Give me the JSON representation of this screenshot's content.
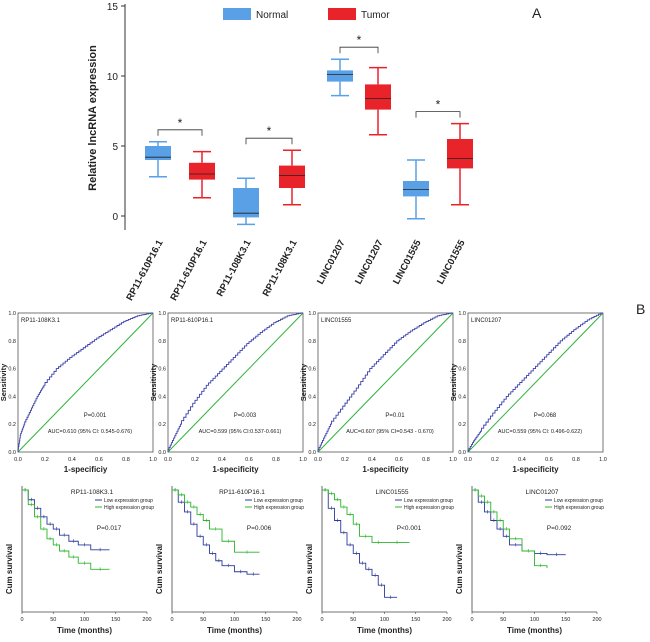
{
  "panel_a": {
    "letter": "A",
    "legend": [
      {
        "label": "Normal",
        "color": "#5aa0e6"
      },
      {
        "label": "Tumor",
        "color": "#e8232a"
      }
    ],
    "ylabel": "Relative lncRNA expression",
    "yticks": [
      "0",
      "5",
      "10",
      "15"
    ],
    "significance_mark": "*"
  },
  "panel_b": {
    "letter": "B",
    "roc_xlabel": "1-specificity",
    "roc_ylabel": "Sensitivity",
    "roc_ticks": [
      "0.0",
      "0.2",
      "0.4",
      "0.6",
      "0.8",
      "1.0"
    ],
    "km_xlabel": "Time (months)",
    "km_ylabel": "Cum survival",
    "km_xticks": [
      "0",
      "50",
      "100",
      "150",
      "200"
    ],
    "km_legend": [
      "Low expression group",
      "High expression group"
    ],
    "km_colors": {
      "low": "#2d3a9c",
      "high": "#2bb52b"
    },
    "roc_curve_color": "#3a3fa8",
    "roc_ref_color": "#2db33a"
  },
  "chart_data": [
    {
      "type": "box",
      "title": "",
      "xlabel": "",
      "ylabel": "Relative lncRNA expression",
      "ylim": [
        -1,
        15
      ],
      "categories": [
        "RP11-610P16.1",
        "RP11-610P16.1",
        "RP11-108K3.1",
        "RP11-108K3.1",
        "LINC01207",
        "LINC01207",
        "LINC01555",
        "LINC01555"
      ],
      "series": [
        {
          "name": "Normal",
          "boxes": [
            {
              "label": "RP11-610P16.1",
              "min": 2.8,
              "q1": 4.0,
              "median": 4.2,
              "q3": 5.0,
              "max": 5.3
            },
            {
              "label": "RP11-108K3.1",
              "min": -0.6,
              "q1": -0.1,
              "median": 0.2,
              "q3": 2.0,
              "max": 2.7
            },
            {
              "label": "LINC01207",
              "min": 8.6,
              "q1": 9.6,
              "median": 10.1,
              "q3": 10.4,
              "max": 11.2
            },
            {
              "label": "LINC01555",
              "min": -0.2,
              "q1": 1.4,
              "median": 1.9,
              "q3": 2.5,
              "max": 4.0
            }
          ]
        },
        {
          "name": "Tumor",
          "boxes": [
            {
              "label": "RP11-610P16.1",
              "min": 1.3,
              "q1": 2.6,
              "median": 3.0,
              "q3": 3.8,
              "max": 4.6
            },
            {
              "label": "RP11-108K3.1",
              "min": 0.8,
              "q1": 2.0,
              "median": 2.9,
              "q3": 3.6,
              "max": 4.7
            },
            {
              "label": "LINC01207",
              "min": 5.8,
              "q1": 7.6,
              "median": 8.4,
              "q3": 9.4,
              "max": 10.6
            },
            {
              "label": "LINC01555",
              "min": 0.8,
              "q1": 3.4,
              "median": 4.1,
              "q3": 5.5,
              "max": 6.6
            }
          ]
        }
      ]
    },
    {
      "type": "line",
      "subtype": "roc",
      "title": "RP11-108K3.1",
      "p_value": "P=0.001",
      "auc_text": "AUC=0.610 (95% CI: 0.545-0.676)",
      "xlabel": "1-specificiy",
      "ylabel": "Sensitivity",
      "xlim": [
        0,
        1
      ],
      "ylim": [
        0,
        1
      ],
      "x": [
        0,
        0.02,
        0.05,
        0.1,
        0.15,
        0.2,
        0.3,
        0.4,
        0.5,
        0.6,
        0.7,
        0.8,
        0.9,
        1.0
      ],
      "y": [
        0,
        0.12,
        0.2,
        0.3,
        0.4,
        0.48,
        0.6,
        0.68,
        0.75,
        0.82,
        0.88,
        0.94,
        0.98,
        1.0
      ]
    },
    {
      "type": "line",
      "subtype": "roc",
      "title": "RP11-610P16.1",
      "p_value": "P=0.003",
      "auc_text": "AUC=0.599 (95% CI:0.537-0.661)",
      "xlabel": "1-specificity",
      "ylabel": "Sensitivity",
      "xlim": [
        0,
        1
      ],
      "ylim": [
        0,
        1
      ],
      "x": [
        0,
        0.05,
        0.1,
        0.2,
        0.3,
        0.4,
        0.5,
        0.6,
        0.7,
        0.8,
        0.9,
        1.0
      ],
      "y": [
        0,
        0.1,
        0.2,
        0.35,
        0.48,
        0.58,
        0.68,
        0.78,
        0.86,
        0.93,
        0.98,
        1.0
      ]
    },
    {
      "type": "line",
      "subtype": "roc",
      "title": "LINC01555",
      "p_value": "P=0.01",
      "auc_text": "AUC=0.607 (95% CI=0.543 - 0.670)",
      "xlabel": "1-specificity",
      "ylabel": "Sensitivity",
      "xlim": [
        0,
        1
      ],
      "ylim": [
        0,
        1
      ],
      "x": [
        0,
        0.05,
        0.1,
        0.2,
        0.3,
        0.4,
        0.5,
        0.6,
        0.7,
        0.8,
        0.9,
        1.0
      ],
      "y": [
        0,
        0.1,
        0.2,
        0.33,
        0.46,
        0.6,
        0.7,
        0.8,
        0.87,
        0.93,
        0.98,
        1.0
      ]
    },
    {
      "type": "line",
      "subtype": "roc",
      "title": "LINC01207",
      "p_value": "P=0.068",
      "auc_text": "AUC=0.559 (95% CI: 0.496-0.622)",
      "xlabel": "1-specificity",
      "ylabel": "Sensitivity",
      "xlim": [
        0,
        1
      ],
      "ylim": [
        0,
        1
      ],
      "x": [
        0,
        0.05,
        0.1,
        0.2,
        0.3,
        0.4,
        0.5,
        0.6,
        0.7,
        0.8,
        0.9,
        1.0
      ],
      "y": [
        0,
        0.08,
        0.15,
        0.28,
        0.4,
        0.5,
        0.6,
        0.7,
        0.8,
        0.88,
        0.95,
        1.0
      ]
    },
    {
      "type": "line",
      "subtype": "kaplan-meier",
      "title": "RP11-108K3.1",
      "p_value": "P=0.017",
      "xlabel": "Time (months)",
      "ylabel": "Cum survival",
      "xlim": [
        0,
        200
      ],
      "ylim": [
        0,
        1
      ],
      "series": [
        {
          "name": "Low expression group",
          "x": [
            0,
            10,
            20,
            30,
            40,
            50,
            60,
            75,
            90,
            110,
            140
          ],
          "y": [
            1.0,
            0.92,
            0.85,
            0.78,
            0.72,
            0.68,
            0.63,
            0.58,
            0.55,
            0.51,
            0.51
          ]
        },
        {
          "name": "High expression group",
          "x": [
            0,
            10,
            20,
            30,
            40,
            50,
            60,
            75,
            90,
            110,
            140
          ],
          "y": [
            1.0,
            0.88,
            0.78,
            0.68,
            0.6,
            0.55,
            0.5,
            0.45,
            0.4,
            0.35,
            0.35
          ]
        }
      ]
    },
    {
      "type": "line",
      "subtype": "kaplan-meier",
      "title": "RP11-610P16.1",
      "p_value": "P=0.006",
      "xlabel": "Time (months)",
      "ylabel": "Cum survival",
      "xlim": [
        0,
        200
      ],
      "ylim": [
        0,
        1
      ],
      "series": [
        {
          "name": "Low expression group",
          "x": [
            0,
            10,
            20,
            30,
            40,
            50,
            60,
            70,
            80,
            100,
            120,
            140
          ],
          "y": [
            1.0,
            0.9,
            0.82,
            0.72,
            0.62,
            0.55,
            0.48,
            0.42,
            0.38,
            0.33,
            0.31,
            0.31
          ]
        },
        {
          "name": "High expression group",
          "x": [
            0,
            10,
            20,
            30,
            40,
            50,
            60,
            80,
            100,
            140
          ],
          "y": [
            1.0,
            0.96,
            0.9,
            0.86,
            0.8,
            0.75,
            0.68,
            0.58,
            0.49,
            0.49
          ]
        }
      ]
    },
    {
      "type": "line",
      "subtype": "kaplan-meier",
      "title": "LINC01555",
      "p_value": "P<0.001",
      "xlabel": "Time (months)",
      "ylabel": "Cum survival",
      "xlim": [
        0,
        200
      ],
      "ylim": [
        0,
        1
      ],
      "series": [
        {
          "name": "Low expression group",
          "x": [
            0,
            10,
            20,
            30,
            40,
            50,
            60,
            70,
            80,
            90,
            100,
            120
          ],
          "y": [
            1.0,
            0.85,
            0.75,
            0.65,
            0.55,
            0.48,
            0.4,
            0.35,
            0.3,
            0.22,
            0.12,
            0.12
          ]
        },
        {
          "name": "High expression group",
          "x": [
            0,
            10,
            20,
            30,
            40,
            50,
            60,
            80,
            100,
            140
          ],
          "y": [
            1.0,
            0.97,
            0.92,
            0.86,
            0.8,
            0.72,
            0.62,
            0.57,
            0.57,
            0.57
          ]
        }
      ]
    },
    {
      "type": "line",
      "subtype": "kaplan-meier",
      "title": "LINC01207",
      "p_value": "P=0.092",
      "xlabel": "Time (months)",
      "ylabel": "Cum survival",
      "xlim": [
        0,
        200
      ],
      "ylim": [
        0,
        1
      ],
      "series": [
        {
          "name": "Low expression group",
          "x": [
            0,
            10,
            20,
            30,
            40,
            50,
            60,
            80,
            100,
            120,
            150
          ],
          "y": [
            1.0,
            0.9,
            0.82,
            0.75,
            0.68,
            0.62,
            0.55,
            0.5,
            0.48,
            0.47,
            0.47
          ]
        },
        {
          "name": "High expression group",
          "x": [
            0,
            10,
            20,
            30,
            40,
            50,
            60,
            80,
            100,
            120
          ],
          "y": [
            1.0,
            0.95,
            0.9,
            0.82,
            0.75,
            0.68,
            0.6,
            0.5,
            0.38,
            0.36
          ]
        }
      ]
    }
  ]
}
